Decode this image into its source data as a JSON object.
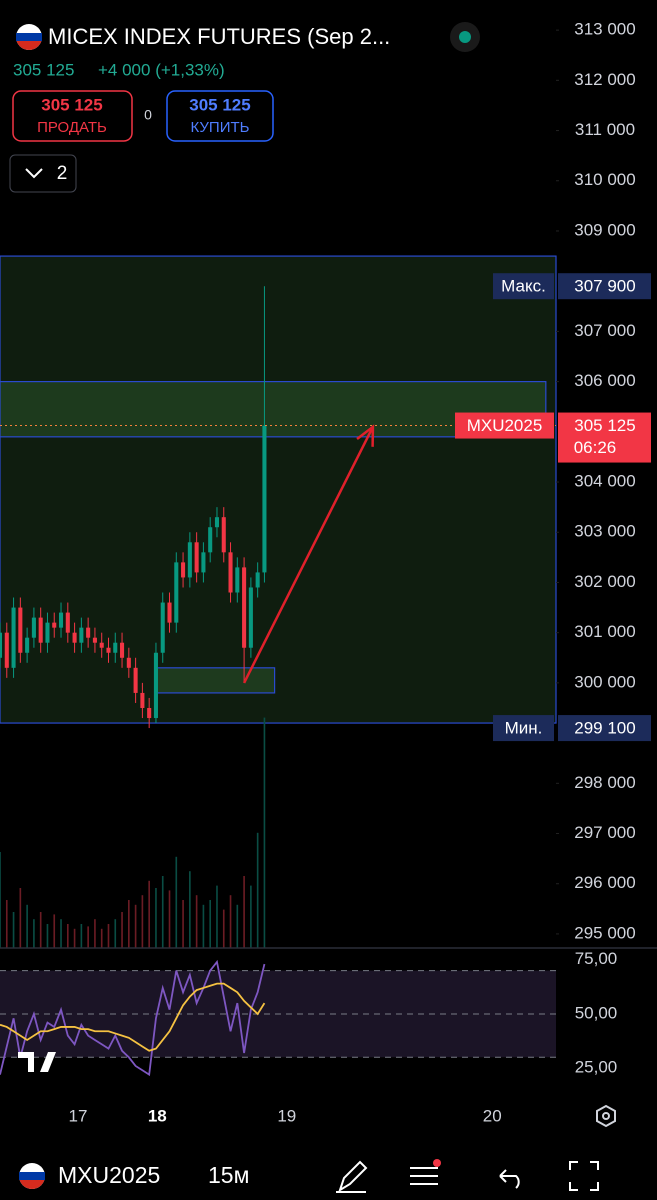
{
  "header": {
    "title": "MICEX INDEX FUTURES (Sep 2...",
    "price": "305 125",
    "change": "+4 000 (+1,33%)",
    "sell": {
      "price": "305 125",
      "label": "ПРОДАТЬ"
    },
    "spread": "0",
    "buy": {
      "price": "305 125",
      "label": "КУПИТЬ"
    },
    "layers": "2"
  },
  "toolbar": {
    "symbol": "MXU2025",
    "interval": "15м"
  },
  "chart_data": {
    "type": "candlestick",
    "up_color": "#089981",
    "down_color": "#f23645",
    "open": [
      300500,
      301000,
      300300,
      301500,
      300600,
      300900,
      301300,
      300800,
      301200,
      301100,
      301400,
      301000,
      300800,
      301100,
      300900,
      300800,
      300700,
      300600,
      300800,
      300500,
      300300,
      299800,
      299500,
      299300,
      300600,
      301600,
      301200,
      302400,
      302100,
      302800,
      302200,
      302600,
      303100,
      303300,
      302600,
      301800,
      302300,
      300700,
      301900,
      302200
    ],
    "high": [
      301200,
      301200,
      301700,
      301700,
      301100,
      301500,
      301500,
      301400,
      301400,
      301600,
      301600,
      301200,
      301300,
      301300,
      301100,
      301000,
      300900,
      301000,
      301000,
      300700,
      300500,
      300000,
      299700,
      300800,
      301800,
      301800,
      302600,
      302600,
      303000,
      303000,
      302800,
      303300,
      303500,
      303500,
      302800,
      302500,
      302500,
      302100,
      302400,
      307900
    ],
    "low": [
      300300,
      300100,
      300100,
      300400,
      300400,
      300700,
      300600,
      300600,
      300900,
      300900,
      300800,
      300600,
      300600,
      300700,
      300600,
      300500,
      300400,
      300400,
      300300,
      300100,
      299600,
      299300,
      299100,
      299200,
      300400,
      301000,
      301000,
      301900,
      301900,
      302000,
      302000,
      302400,
      302900,
      302400,
      301600,
      301600,
      300000,
      300500,
      301700,
      302000
    ],
    "close": [
      301000,
      300300,
      301500,
      300600,
      300900,
      301300,
      300800,
      301200,
      301100,
      301400,
      301000,
      300800,
      301100,
      300900,
      300800,
      300700,
      300600,
      300800,
      300500,
      300300,
      299800,
      299500,
      299300,
      300600,
      301600,
      301200,
      302400,
      302100,
      302800,
      302200,
      302600,
      303100,
      303300,
      302600,
      301800,
      302300,
      300700,
      301900,
      302200,
      305125
    ],
    "xlim": [
      0,
      82
    ],
    "xticks": [
      {
        "value": 11.5,
        "label": "17"
      },
      {
        "value": 23.2,
        "label": "18"
      },
      {
        "value": 42.3,
        "label": "19"
      },
      {
        "value": 72.6,
        "label": "20"
      }
    ],
    "ylim": [
      294720,
      313600
    ],
    "yticks": [
      {
        "value": 313000,
        "label": "313 000"
      },
      {
        "value": 312000,
        "label": "312 000"
      },
      {
        "value": 311000,
        "label": "311 000"
      },
      {
        "value": 310000,
        "label": "310 000"
      },
      {
        "value": 309000,
        "label": "309 000"
      },
      {
        "value": 307000,
        "label": "307 000"
      },
      {
        "value": 306000,
        "label": "306 000"
      },
      {
        "value": 304000,
        "label": "304 000"
      },
      {
        "value": 303000,
        "label": "303 000"
      },
      {
        "value": 302000,
        "label": "302 000"
      },
      {
        "value": 301000,
        "label": "301 000"
      },
      {
        "value": 300000,
        "label": "300 000"
      },
      {
        "value": 298000,
        "label": "298 000"
      },
      {
        "value": 297000,
        "label": "297 000"
      },
      {
        "value": 296000,
        "label": "296 000"
      },
      {
        "value": 295000,
        "label": "295 000"
      }
    ],
    "volume": {
      "lim": [
        0,
        100
      ],
      "values": [
        40,
        20,
        15,
        25,
        18,
        12,
        15,
        10,
        14,
        12,
        10,
        8,
        10,
        9,
        12,
        8,
        10,
        12,
        15,
        20,
        18,
        22,
        28,
        25,
        30,
        24,
        38,
        20,
        32,
        22,
        18,
        20,
        26,
        16,
        22,
        18,
        30,
        26,
        48,
        96
      ]
    },
    "zones": [
      {
        "x": [
          0,
          82
        ],
        "y": [
          299200,
          308500
        ]
      },
      {
        "x": [
          0,
          80.5
        ],
        "y": [
          304900,
          306000
        ]
      },
      {
        "x": [
          22.8,
          40.5
        ],
        "y": [
          299800,
          300300
        ]
      }
    ],
    "arrow": {
      "from": [
        36,
        300000
      ],
      "to": [
        55,
        305100
      ],
      "color": "#e0202b"
    },
    "price_labels": [
      {
        "name": "Макс.",
        "value": 307900,
        "label": "307 900"
      },
      {
        "name": "MXU2025",
        "value": 305125,
        "label": "305 125",
        "countdown": "06:26"
      },
      {
        "name": "Мин.",
        "value": 299100,
        "label": "299 100"
      }
    ],
    "rsi": {
      "ylim": [
        12.6,
        79.5
      ],
      "yticks": [
        {
          "value": 75,
          "label": "75,00"
        },
        {
          "value": 50,
          "label": "50,00"
        },
        {
          "value": 25,
          "label": "25,00"
        }
      ],
      "levels": [
        30,
        50,
        70
      ],
      "color": "#7e57c2",
      "ma_color": "#f5c242",
      "values": [
        22,
        35,
        48,
        30,
        42,
        50,
        38,
        46,
        44,
        52,
        40,
        36,
        45,
        40,
        38,
        36,
        34,
        40,
        33,
        30,
        26,
        24,
        22,
        48,
        62,
        52,
        70,
        60,
        68,
        55,
        62,
        70,
        74,
        58,
        42,
        55,
        32,
        52,
        60,
        73
      ],
      "ma": [
        45,
        44,
        42,
        40,
        38,
        40,
        42,
        42,
        43,
        44,
        44,
        44,
        43,
        43,
        42,
        42,
        42,
        41,
        40,
        39,
        37,
        35,
        33,
        34,
        38,
        42,
        48,
        54,
        58,
        61,
        62,
        63,
        64,
        64,
        62,
        60,
        56,
        53,
        50,
        55
      ]
    }
  }
}
